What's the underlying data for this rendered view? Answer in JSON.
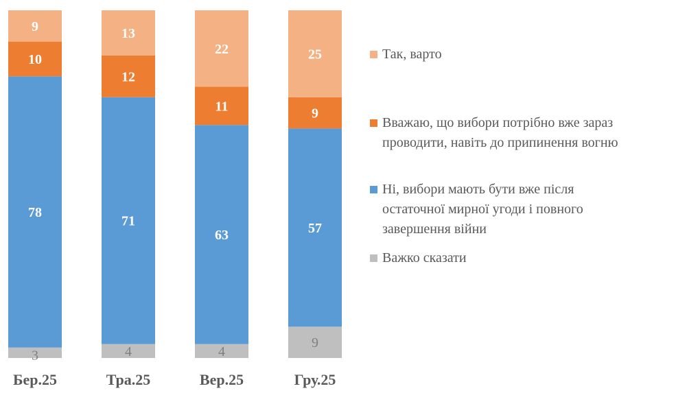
{
  "chart_data": {
    "type": "bar",
    "stacked": true,
    "categories": [
      "Бер.25",
      "Тра.25",
      "Вер.25",
      "Гру.25"
    ],
    "series": [
      {
        "name": "Важко сказати",
        "color": "#BFBFBF",
        "label_color": "#7F7F7F",
        "values": [
          3,
          4,
          4,
          9
        ]
      },
      {
        "name": "Ні, вибори мають бути вже після остаточної мирної угоди і повного завершення війни",
        "color": "#5B9BD5",
        "label_color": "#FFFFFF",
        "values": [
          78,
          71,
          63,
          57
        ]
      },
      {
        "name": "Вважаю, що вибори потрібно вже зараз проводити, навіть до припинення вогню",
        "color": "#ED7D31",
        "label_color": "#FFFFFF",
        "values": [
          10,
          12,
          11,
          9
        ]
      },
      {
        "name": "Так, варто",
        "color": "#F4B183",
        "label_color": "#FFFFFF",
        "values": [
          9,
          13,
          22,
          25
        ]
      }
    ],
    "ylim": [
      0,
      100
    ],
    "grid": false,
    "legend_position": "right",
    "legend": [
      {
        "lines": [
          "Так, варто"
        ],
        "color": "#F4B183"
      },
      {
        "lines": [
          "Вважаю, що вибори потрібно вже зараз",
          "проводити, навіть до припинення вогню"
        ],
        "color": "#ED7D31"
      },
      {
        "lines": [
          "Ні, вибори мають бути вже після",
          "остаточної мирної угоди і повного",
          "завершення війни"
        ],
        "color": "#5B9BD5"
      },
      {
        "lines": [
          "Важко сказати"
        ],
        "color": "#BFBFBF"
      }
    ]
  }
}
